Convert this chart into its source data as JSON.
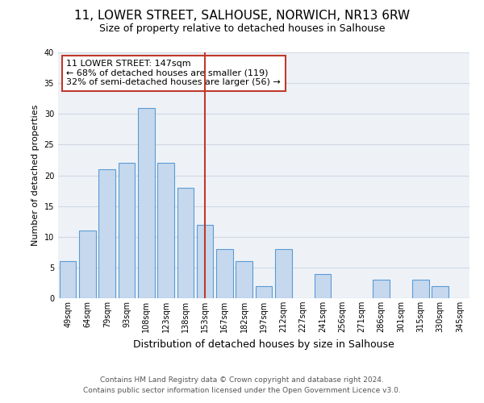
{
  "title": "11, LOWER STREET, SALHOUSE, NORWICH, NR13 6RW",
  "subtitle": "Size of property relative to detached houses in Salhouse",
  "xlabel": "Distribution of detached houses by size in Salhouse",
  "ylabel": "Number of detached properties",
  "bin_labels": [
    "49sqm",
    "64sqm",
    "79sqm",
    "93sqm",
    "108sqm",
    "123sqm",
    "138sqm",
    "153sqm",
    "167sqm",
    "182sqm",
    "197sqm",
    "212sqm",
    "227sqm",
    "241sqm",
    "256sqm",
    "271sqm",
    "286sqm",
    "301sqm",
    "315sqm",
    "330sqm",
    "345sqm"
  ],
  "counts": [
    6,
    11,
    21,
    22,
    31,
    22,
    18,
    12,
    8,
    6,
    2,
    8,
    0,
    4,
    0,
    0,
    3,
    0,
    3,
    2,
    0
  ],
  "bar_color": "#c5d8ed",
  "bar_edge_color": "#5b9bd5",
  "vline_index": 7,
  "vline_color": "#c0392b",
  "annotation_text": "11 LOWER STREET: 147sqm\n← 68% of detached houses are smaller (119)\n32% of semi-detached houses are larger (56) →",
  "annotation_box_color": "white",
  "annotation_box_edge_color": "#c0392b",
  "ylim": [
    0,
    40
  ],
  "yticks": [
    0,
    5,
    10,
    15,
    20,
    25,
    30,
    35,
    40
  ],
  "grid_color": "#d0d8e4",
  "background_color": "#eef2f7",
  "footer_line1": "Contains HM Land Registry data © Crown copyright and database right 2024.",
  "footer_line2": "Contains public sector information licensed under the Open Government Licence v3.0.",
  "title_fontsize": 11,
  "ylabel_fontsize": 8,
  "xlabel_fontsize": 9,
  "annotation_fontsize": 8,
  "footer_fontsize": 6.5,
  "tick_fontsize": 7
}
